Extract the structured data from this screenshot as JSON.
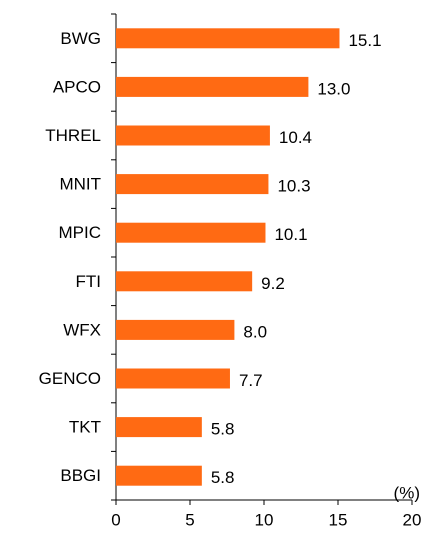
{
  "chart_data": {
    "type": "barh",
    "categories": [
      "BWG",
      "APCO",
      "THREL",
      "MNIT",
      "MPIC",
      "FTI",
      "WFX",
      "GENCO",
      "TKT",
      "BBGI"
    ],
    "values": [
      15.1,
      13.0,
      10.4,
      10.3,
      10.1,
      9.2,
      8.0,
      7.7,
      5.8,
      5.8
    ],
    "value_labels": [
      "15.1",
      "13.0",
      "10.4",
      "10.3",
      "10.1",
      "9.2",
      "8.0",
      "7.7",
      "5.8",
      "5.8"
    ],
    "color": "#ff6a13",
    "xlabel": "(%)",
    "xlim": [
      0,
      20
    ],
    "xticks": [
      0,
      5,
      10,
      15,
      20
    ],
    "grid": false
  }
}
